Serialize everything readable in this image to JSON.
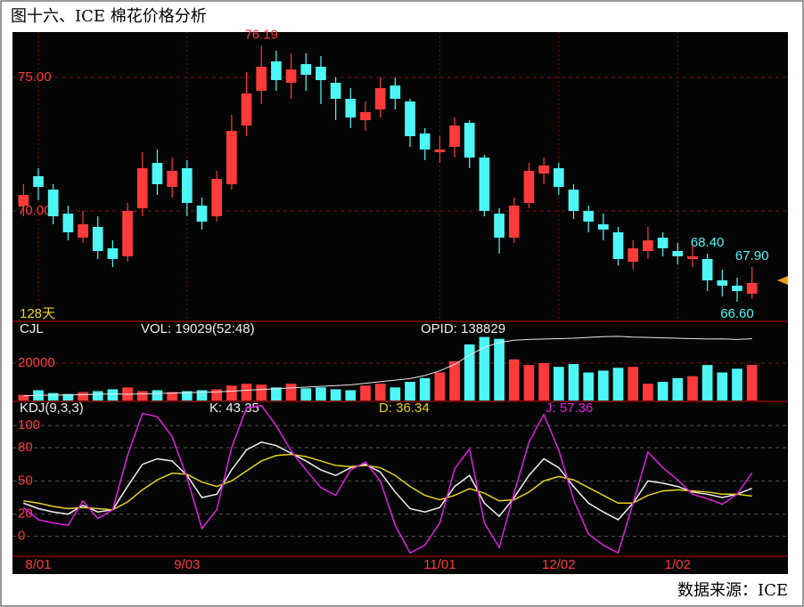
{
  "title": "图十六、ICE 棉花价格分析",
  "source": "数据来源：ICE",
  "chart_data": [
    {
      "type": "candlestick",
      "period_label": "128天",
      "up_color": "#ff3a3a",
      "down_color": "#4ef6f6",
      "ylim": [
        65.9,
        76.7
      ],
      "yticks": [
        {
          "value": 75,
          "label": "75.00"
        },
        {
          "value": 70,
          "label": "70.00"
        }
      ],
      "open": [
        70.2,
        71.3,
        70.8,
        69.9,
        69.0,
        69.4,
        68.6,
        68.3,
        70.1,
        71.8,
        70.9,
        71.6,
        70.2,
        69.8,
        71.0,
        73.2,
        74.5,
        75.6,
        74.8,
        75.5,
        75.4,
        74.8,
        74.2,
        73.4,
        73.8,
        74.7,
        74.1,
        72.9,
        72.2,
        72.4,
        73.3,
        72.0,
        69.9,
        69.0,
        70.3,
        71.4,
        71.6,
        70.8,
        70.0,
        69.5,
        69.2,
        68.1,
        68.5,
        69.0,
        68.5,
        68.2,
        68.2,
        67.4,
        67.2,
        66.9
      ],
      "high": [
        71.0,
        71.6,
        71.0,
        70.2,
        70.0,
        69.8,
        68.9,
        70.3,
        72.2,
        72.3,
        72.0,
        71.9,
        70.5,
        71.5,
        73.6,
        75.2,
        76.19,
        76.0,
        75.9,
        75.9,
        75.8,
        75.0,
        74.6,
        74.1,
        75.0,
        75.0,
        74.2,
        73.1,
        72.8,
        73.5,
        73.4,
        72.1,
        70.1,
        70.5,
        71.8,
        72.0,
        71.8,
        71.0,
        70.2,
        69.9,
        69.4,
        68.9,
        69.4,
        69.2,
        68.8,
        68.7,
        68.4,
        67.8,
        67.5,
        67.9
      ],
      "low": [
        69.8,
        70.4,
        69.5,
        68.9,
        68.8,
        68.2,
        67.9,
        68.1,
        69.8,
        70.6,
        70.5,
        69.8,
        69.3,
        69.6,
        70.8,
        72.8,
        74.0,
        74.5,
        74.2,
        74.5,
        74.0,
        73.4,
        73.1,
        73.0,
        73.5,
        73.8,
        72.4,
        71.9,
        71.8,
        72.0,
        71.6,
        69.8,
        68.4,
        68.8,
        70.1,
        71.0,
        70.6,
        69.7,
        69.2,
        68.9,
        67.95,
        67.8,
        68.2,
        68.3,
        68.0,
        67.9,
        67.0,
        66.8,
        66.6,
        66.7
      ],
      "close": [
        70.6,
        70.9,
        69.8,
        69.2,
        69.5,
        68.5,
        68.2,
        70.0,
        71.6,
        71.0,
        71.5,
        70.3,
        69.6,
        71.2,
        73.0,
        74.4,
        75.4,
        74.9,
        75.3,
        75.1,
        74.9,
        74.2,
        73.5,
        73.7,
        74.6,
        74.2,
        72.8,
        72.3,
        72.3,
        73.2,
        72.0,
        70.0,
        69.0,
        70.2,
        71.5,
        71.7,
        70.9,
        70.0,
        69.6,
        69.3,
        68.2,
        68.6,
        68.9,
        68.6,
        68.3,
        68.3,
        67.4,
        67.2,
        67.0,
        67.3
      ],
      "annotations": [
        {
          "value": 76.19,
          "label": "76.19",
          "color": "#ff3a3a"
        },
        {
          "value": 67.9,
          "label": "67.90",
          "color": "#4ef6f6"
        },
        {
          "value": 68.4,
          "label": "68.40",
          "color": "#4ef6f6"
        },
        {
          "value": 66.6,
          "label": "66.60",
          "color": "#4ef6f6"
        }
      ]
    },
    {
      "type": "bar",
      "title": "CJL",
      "ylim": [
        0,
        41900
      ],
      "yticks": [
        20000
      ],
      "y2lim": [
        60000,
        160000
      ],
      "series": [
        {
          "name": "VOL: 19029(52:48)",
          "values": [
            3000,
            5500,
            4000,
            3500,
            4500,
            5000,
            6000,
            7000,
            5000,
            5500,
            4500,
            5000,
            5500,
            6000,
            8000,
            9000,
            8500,
            7000,
            9000,
            6500,
            7000,
            6000,
            5500,
            8000,
            9000,
            7000,
            10000,
            12000,
            15000,
            21000,
            30000,
            34000,
            33000,
            22000,
            19000,
            20000,
            18000,
            19500,
            15000,
            16000,
            17500,
            18000,
            9000,
            10000,
            12000,
            13000,
            19000,
            15000,
            17000,
            19029
          ]
        },
        {
          "name": "OPID: 138829",
          "axis": "y2",
          "color": "#e8e8e8",
          "values": [
            66000,
            66500,
            67000,
            67000,
            67500,
            68000,
            68500,
            68000,
            68500,
            69000,
            69500,
            70000,
            70500,
            71000,
            72000,
            73000,
            74000,
            75000,
            76000,
            77000,
            78000,
            79000,
            80000,
            82000,
            84000,
            86000,
            88000,
            92000,
            98000,
            106000,
            118000,
            128000,
            134000,
            137000,
            138000,
            138500,
            139000,
            139500,
            140500,
            141500,
            142000,
            141000,
            140500,
            140000,
            139500,
            139000,
            138500,
            138700,
            138000,
            138829
          ]
        }
      ]
    },
    {
      "type": "line",
      "title": "KDJ(9,3,3)",
      "ylim": [
        -18,
        121
      ],
      "yticks": [
        100,
        80,
        50,
        20,
        0
      ],
      "grid": true,
      "categories": [
        null,
        "8/01",
        null,
        null,
        null,
        null,
        null,
        null,
        null,
        null,
        null,
        "9/03",
        null,
        null,
        null,
        null,
        null,
        null,
        null,
        null,
        null,
        null,
        null,
        null,
        null,
        null,
        null,
        null,
        "11/01",
        null,
        null,
        null,
        null,
        null,
        null,
        null,
        "12/02",
        null,
        null,
        null,
        null,
        null,
        null,
        null,
        "1/02",
        null,
        null,
        null,
        null,
        null
      ],
      "series": [
        {
          "name": "K: 43.35",
          "color": "#f0f0f0",
          "values": [
            30,
            25,
            22,
            20,
            28,
            22,
            24,
            45,
            65,
            70,
            68,
            55,
            35,
            38,
            60,
            78,
            85,
            82,
            75,
            68,
            60,
            55,
            62,
            65,
            58,
            40,
            25,
            22,
            26,
            45,
            55,
            30,
            18,
            35,
            55,
            70,
            62,
            45,
            30,
            22,
            15,
            30,
            50,
            48,
            45,
            40,
            38,
            35,
            38,
            43.35
          ]
        },
        {
          "name": "D: 36.34",
          "color": "#e8d020",
          "values": [
            32,
            30,
            27,
            25,
            26,
            25,
            24,
            31,
            42,
            51,
            57,
            56,
            49,
            45,
            50,
            59,
            68,
            73,
            74,
            72,
            68,
            64,
            63,
            64,
            62,
            55,
            45,
            37,
            33,
            37,
            43,
            39,
            32,
            33,
            40,
            50,
            54,
            51,
            44,
            37,
            30,
            30,
            37,
            41,
            42,
            41,
            40,
            38,
            38,
            36.34
          ]
        },
        {
          "name": "J: 57.36",
          "color": "#e020e0",
          "values": [
            26,
            15,
            12,
            10,
            32,
            16,
            24,
            73,
            111,
            108,
            90,
            53,
            7,
            24,
            80,
            116,
            118,
            100,
            77,
            60,
            44,
            37,
            60,
            67,
            50,
            10,
            -15,
            -8,
            12,
            61,
            79,
            12,
            -10,
            39,
            85,
            110,
            78,
            33,
            2,
            -8,
            -15,
            30,
            76,
            62,
            51,
            38,
            34,
            29,
            38,
            57.36
          ]
        }
      ]
    }
  ]
}
